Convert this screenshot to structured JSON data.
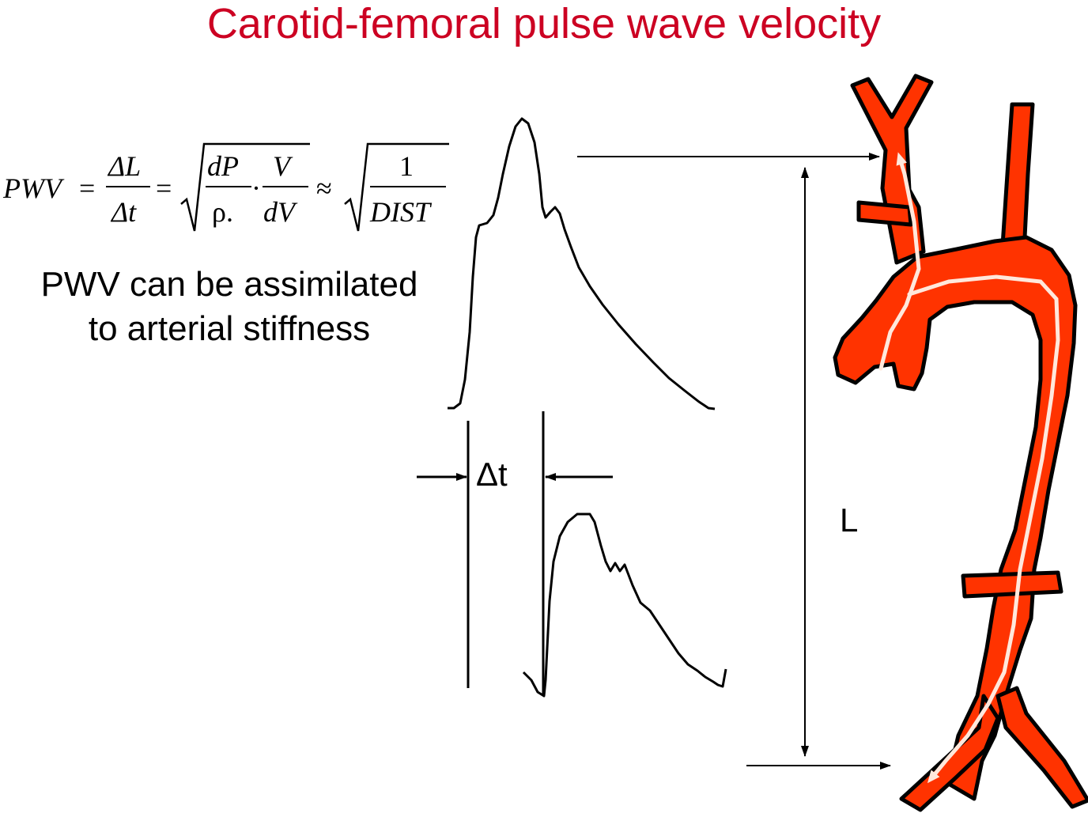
{
  "title": "Carotid-femoral pulse wave velocity",
  "colors": {
    "title": "#cc0022",
    "artery_fill": "#ff3300",
    "flow_arrow": "#ffe8dc",
    "ink": "#000000"
  },
  "formula": {
    "lhs": "PWV",
    "eq1": "=",
    "frac1_num": "ΔL",
    "frac1_den": "Δt",
    "eq2": "=",
    "frac2_num": "dP",
    "frac2_den": "ρ.",
    "dot": "·",
    "frac3_num": "V",
    "frac3_den": "dV",
    "approx": "≈",
    "frac4_num": "1",
    "frac4_den": "DIST"
  },
  "caption": {
    "line1": "PWV can be assimilated",
    "line2": "to arterial stiffness"
  },
  "labels": {
    "delta_t": "Δt",
    "length": "L"
  },
  "icons": {
    "artery": "aorta-carotid-femoral-tree",
    "flow": "blood-flow-arrow"
  }
}
